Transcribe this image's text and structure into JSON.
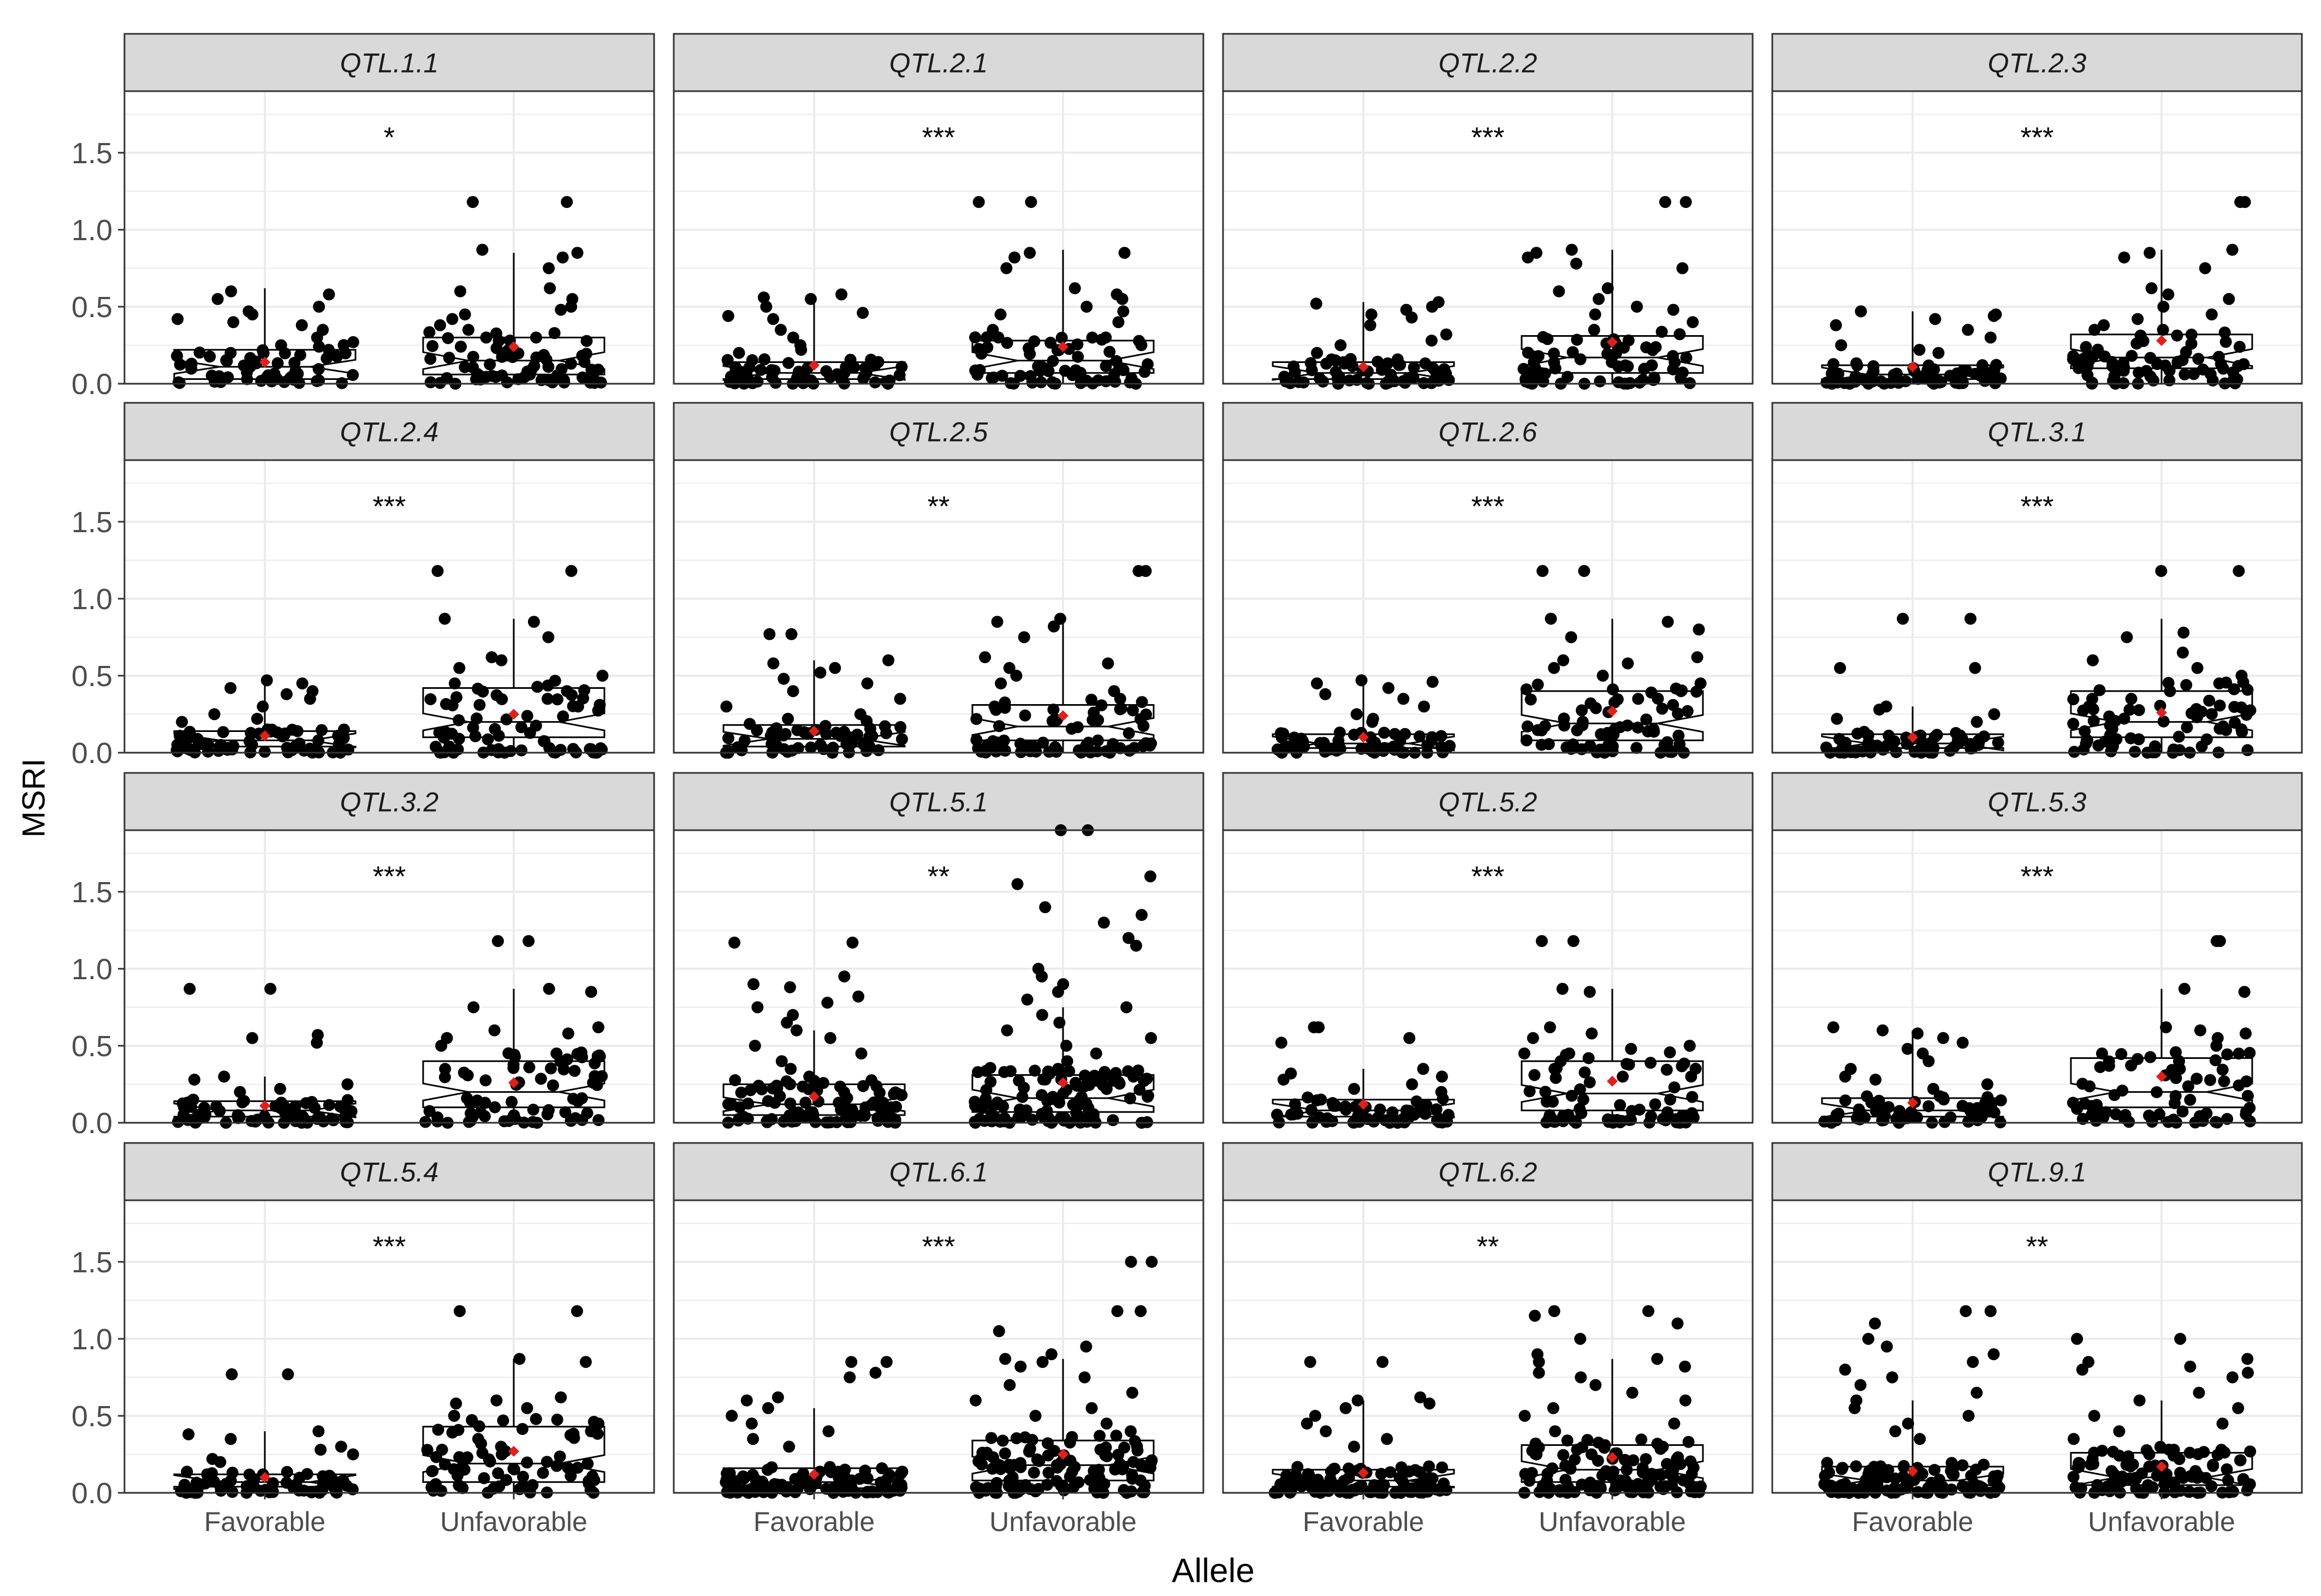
{
  "figure": {
    "ylabel": "MSRI",
    "xlabel": "Allele"
  },
  "chart_data": {
    "type": "box",
    "facet_layout": "4x4 grid, shared axes",
    "grid": true,
    "categories": [
      "Favorable",
      "Unfavorable"
    ],
    "ylim": [
      0,
      1.9
    ],
    "yticks": [
      "0.0",
      "0.5",
      "1.0",
      "1.5"
    ],
    "colors": {
      "points": "#000000",
      "mean_marker": "#e0201b",
      "strip": "#d9d9d9",
      "grid": "#ebebeb"
    },
    "panels": [
      {
        "title": "QTL.1.1",
        "significance": "*",
        "boxes": [
          {
            "group": "Favorable",
            "q1": 0.03,
            "median": 0.11,
            "q3": 0.22,
            "mean": 0.14,
            "whisker_high": 0.62,
            "n_points": 70,
            "points": [
              0.6,
              0.58,
              0.55,
              0.5,
              0.47,
              0.45,
              0.42,
              0.4,
              0.38,
              0.35,
              0.3,
              0.27,
              0.25,
              0.22,
              0.2,
              0.18
            ]
          },
          {
            "group": "Unfavorable",
            "q1": 0.06,
            "median": 0.15,
            "q3": 0.3,
            "mean": 0.24,
            "whisker_high": 0.85,
            "n_points": 80,
            "points": [
              1.18,
              1.18,
              0.87,
              0.85,
              0.82,
              0.75,
              0.62,
              0.6,
              0.55,
              0.5,
              0.48,
              0.45,
              0.42,
              0.38,
              0.35,
              0.3,
              0.28
            ]
          }
        ]
      },
      {
        "title": "QTL.2.1",
        "significance": "***",
        "boxes": [
          {
            "group": "Favorable",
            "q1": 0.03,
            "median": 0.07,
            "q3": 0.14,
            "mean": 0.12,
            "whisker_high": 0.57,
            "n_points": 70,
            "points": [
              0.58,
              0.56,
              0.55,
              0.5,
              0.46,
              0.44,
              0.42,
              0.35,
              0.3,
              0.25,
              0.22,
              0.2
            ]
          },
          {
            "group": "Unfavorable",
            "q1": 0.07,
            "median": 0.15,
            "q3": 0.28,
            "mean": 0.24,
            "whisker_high": 0.87,
            "n_points": 80,
            "points": [
              1.18,
              1.18,
              0.85,
              0.85,
              0.82,
              0.75,
              0.62,
              0.58,
              0.55,
              0.5,
              0.47,
              0.45,
              0.4,
              0.35,
              0.3
            ]
          }
        ]
      },
      {
        "title": "QTL.2.2",
        "significance": "***",
        "boxes": [
          {
            "group": "Favorable",
            "q1": 0.03,
            "median": 0.07,
            "q3": 0.14,
            "mean": 0.11,
            "whisker_high": 0.53,
            "n_points": 70,
            "points": [
              0.53,
              0.52,
              0.5,
              0.48,
              0.45,
              0.43,
              0.38,
              0.32,
              0.28,
              0.25,
              0.2
            ]
          },
          {
            "group": "Unfavorable",
            "q1": 0.07,
            "median": 0.17,
            "q3": 0.31,
            "mean": 0.27,
            "whisker_high": 0.87,
            "n_points": 80,
            "points": [
              1.18,
              1.18,
              0.87,
              0.85,
              0.82,
              0.78,
              0.75,
              0.62,
              0.6,
              0.55,
              0.5,
              0.48,
              0.45,
              0.4,
              0.35
            ]
          }
        ]
      },
      {
        "title": "QTL.2.3",
        "significance": "***",
        "boxes": [
          {
            "group": "Favorable",
            "q1": 0.03,
            "median": 0.06,
            "q3": 0.12,
            "mean": 0.11,
            "whisker_high": 0.47,
            "n_points": 70,
            "points": [
              0.47,
              0.45,
              0.44,
              0.42,
              0.38,
              0.35,
              0.3,
              0.25,
              0.22,
              0.2
            ]
          },
          {
            "group": "Unfavorable",
            "q1": 0.1,
            "median": 0.17,
            "q3": 0.32,
            "mean": 0.28,
            "whisker_high": 0.87,
            "n_points": 80,
            "points": [
              1.18,
              1.18,
              0.87,
              0.85,
              0.82,
              0.75,
              0.62,
              0.58,
              0.55,
              0.5,
              0.45,
              0.42,
              0.38,
              0.35
            ]
          }
        ]
      },
      {
        "title": "QTL.2.4",
        "significance": "***",
        "boxes": [
          {
            "group": "Favorable",
            "q1": 0.04,
            "median": 0.08,
            "q3": 0.14,
            "mean": 0.11,
            "whisker_high": 0.47,
            "n_points": 70,
            "points": [
              0.47,
              0.45,
              0.42,
              0.4,
              0.38,
              0.35,
              0.3,
              0.25,
              0.22,
              0.2
            ]
          },
          {
            "group": "Unfavorable",
            "q1": 0.1,
            "median": 0.2,
            "q3": 0.42,
            "mean": 0.25,
            "whisker_high": 0.87,
            "n_points": 80,
            "points": [
              1.18,
              1.18,
              0.87,
              0.85,
              0.75,
              0.62,
              0.6,
              0.55,
              0.5,
              0.45,
              0.4,
              0.35,
              0.3
            ]
          }
        ]
      },
      {
        "title": "QTL.2.5",
        "significance": "**",
        "boxes": [
          {
            "group": "Favorable",
            "q1": 0.04,
            "median": 0.09,
            "q3": 0.18,
            "mean": 0.14,
            "whisker_high": 0.6,
            "n_points": 70,
            "points": [
              0.77,
              0.77,
              0.6,
              0.58,
              0.55,
              0.52,
              0.48,
              0.45,
              0.4,
              0.35,
              0.3,
              0.25,
              0.22
            ]
          },
          {
            "group": "Unfavorable",
            "q1": 0.08,
            "median": 0.17,
            "q3": 0.31,
            "mean": 0.24,
            "whisker_high": 0.87,
            "n_points": 80,
            "points": [
              1.18,
              1.18,
              0.87,
              0.85,
              0.82,
              0.75,
              0.62,
              0.58,
              0.55,
              0.5,
              0.45,
              0.4,
              0.35,
              0.3
            ]
          }
        ]
      },
      {
        "title": "QTL.2.6",
        "significance": "***",
        "boxes": [
          {
            "group": "Favorable",
            "q1": 0.03,
            "median": 0.06,
            "q3": 0.12,
            "mean": 0.1,
            "whisker_high": 0.46,
            "n_points": 70,
            "points": [
              0.47,
              0.46,
              0.45,
              0.42,
              0.38,
              0.35,
              0.3,
              0.25,
              0.22,
              0.2
            ]
          },
          {
            "group": "Unfavorable",
            "q1": 0.08,
            "median": 0.19,
            "q3": 0.4,
            "mean": 0.27,
            "whisker_high": 0.87,
            "n_points": 80,
            "points": [
              1.18,
              1.18,
              0.87,
              0.85,
              0.8,
              0.75,
              0.62,
              0.6,
              0.58,
              0.55,
              0.5,
              0.45,
              0.4,
              0.35
            ]
          }
        ]
      },
      {
        "title": "QTL.3.1",
        "significance": "***",
        "boxes": [
          {
            "group": "Favorable",
            "q1": 0.03,
            "median": 0.06,
            "q3": 0.12,
            "mean": 0.1,
            "whisker_high": 0.3,
            "n_points": 70,
            "points": [
              0.87,
              0.87,
              0.55,
              0.55,
              0.3,
              0.28,
              0.25,
              0.22,
              0.2
            ]
          },
          {
            "group": "Unfavorable",
            "q1": 0.1,
            "median": 0.2,
            "q3": 0.4,
            "mean": 0.26,
            "whisker_high": 0.87,
            "n_points": 80,
            "points": [
              1.18,
              1.18,
              0.78,
              0.75,
              0.65,
              0.6,
              0.55,
              0.5,
              0.45,
              0.4,
              0.35,
              0.3
            ]
          }
        ]
      },
      {
        "title": "QTL.3.2",
        "significance": "***",
        "boxes": [
          {
            "group": "Favorable",
            "q1": 0.04,
            "median": 0.08,
            "q3": 0.14,
            "mean": 0.11,
            "whisker_high": 0.3,
            "n_points": 70,
            "points": [
              0.87,
              0.87,
              0.57,
              0.55,
              0.52,
              0.3,
              0.28,
              0.25,
              0.22,
              0.2
            ]
          },
          {
            "group": "Unfavorable",
            "q1": 0.1,
            "median": 0.2,
            "q3": 0.4,
            "mean": 0.26,
            "whisker_high": 0.87,
            "n_points": 80,
            "points": [
              1.18,
              1.18,
              0.87,
              0.85,
              0.75,
              0.62,
              0.6,
              0.58,
              0.55,
              0.5,
              0.45,
              0.4,
              0.35
            ]
          }
        ]
      },
      {
        "title": "QTL.5.1",
        "significance": "**",
        "boxes": [
          {
            "group": "Favorable",
            "q1": 0.05,
            "median": 0.12,
            "q3": 0.25,
            "mean": 0.17,
            "whisker_high": 0.6,
            "n_points": 110,
            "points": [
              1.17,
              1.17,
              0.95,
              0.9,
              0.88,
              0.82,
              0.78,
              0.75,
              0.7,
              0.65,
              0.6,
              0.55,
              0.5,
              0.45,
              0.4,
              0.35,
              0.3
            ]
          },
          {
            "group": "Unfavorable",
            "q1": 0.07,
            "median": 0.16,
            "q3": 0.31,
            "mean": 0.26,
            "whisker_high": 0.75,
            "n_points": 130,
            "points": [
              1.9,
              1.9,
              1.6,
              1.55,
              1.4,
              1.35,
              1.3,
              1.2,
              1.15,
              1.0,
              0.95,
              0.9,
              0.85,
              0.8,
              0.75,
              0.7,
              0.65,
              0.6,
              0.55,
              0.5,
              0.45,
              0.4
            ]
          }
        ]
      },
      {
        "title": "QTL.5.2",
        "significance": "***",
        "boxes": [
          {
            "group": "Favorable",
            "q1": 0.04,
            "median": 0.08,
            "q3": 0.15,
            "mean": 0.12,
            "whisker_high": 0.35,
            "n_points": 70,
            "points": [
              0.62,
              0.62,
              0.55,
              0.52,
              0.35,
              0.32,
              0.3,
              0.28,
              0.25,
              0.22,
              0.2
            ]
          },
          {
            "group": "Unfavorable",
            "q1": 0.08,
            "median": 0.19,
            "q3": 0.4,
            "mean": 0.27,
            "whisker_high": 0.87,
            "n_points": 80,
            "points": [
              1.18,
              1.18,
              0.87,
              0.85,
              0.62,
              0.58,
              0.55,
              0.5,
              0.48,
              0.45,
              0.4,
              0.35
            ]
          }
        ]
      },
      {
        "title": "QTL.5.3",
        "significance": "***",
        "boxes": [
          {
            "group": "Favorable",
            "q1": 0.04,
            "median": 0.08,
            "q3": 0.16,
            "mean": 0.13,
            "whisker_high": 0.6,
            "n_points": 70,
            "points": [
              0.62,
              0.6,
              0.58,
              0.55,
              0.52,
              0.48,
              0.45,
              0.4,
              0.35,
              0.3,
              0.28,
              0.25,
              0.22
            ]
          },
          {
            "group": "Unfavorable",
            "q1": 0.1,
            "median": 0.2,
            "q3": 0.42,
            "mean": 0.3,
            "whisker_high": 0.87,
            "n_points": 80,
            "points": [
              1.18,
              1.18,
              0.87,
              0.85,
              0.62,
              0.6,
              0.58,
              0.55,
              0.5,
              0.45,
              0.4,
              0.35
            ]
          }
        ]
      },
      {
        "title": "QTL.5.4",
        "significance": "***",
        "boxes": [
          {
            "group": "Favorable",
            "q1": 0.04,
            "median": 0.07,
            "q3": 0.12,
            "mean": 0.1,
            "whisker_high": 0.4,
            "n_points": 70,
            "points": [
              0.77,
              0.77,
              0.4,
              0.38,
              0.35,
              0.3,
              0.28,
              0.25,
              0.22,
              0.2
            ]
          },
          {
            "group": "Unfavorable",
            "q1": 0.07,
            "median": 0.19,
            "q3": 0.43,
            "mean": 0.27,
            "whisker_high": 0.87,
            "n_points": 80,
            "points": [
              1.18,
              1.18,
              0.87,
              0.85,
              0.62,
              0.6,
              0.58,
              0.55,
              0.5,
              0.45,
              0.4,
              0.35
            ]
          }
        ]
      },
      {
        "title": "QTL.6.1",
        "significance": "***",
        "boxes": [
          {
            "group": "Favorable",
            "q1": 0.03,
            "median": 0.07,
            "q3": 0.16,
            "mean": 0.12,
            "whisker_high": 0.55,
            "n_points": 110,
            "points": [
              0.85,
              0.85,
              0.78,
              0.75,
              0.62,
              0.6,
              0.55,
              0.5,
              0.45,
              0.4,
              0.35,
              0.3
            ]
          },
          {
            "group": "Unfavorable",
            "q1": 0.08,
            "median": 0.18,
            "q3": 0.34,
            "mean": 0.25,
            "whisker_high": 0.87,
            "n_points": 130,
            "points": [
              1.5,
              1.5,
              1.18,
              1.18,
              1.05,
              0.95,
              0.9,
              0.87,
              0.85,
              0.82,
              0.75,
              0.7,
              0.65,
              0.6,
              0.55,
              0.5,
              0.45,
              0.4
            ]
          }
        ]
      },
      {
        "title": "QTL.6.2",
        "significance": "**",
        "boxes": [
          {
            "group": "Favorable",
            "q1": 0.04,
            "median": 0.08,
            "q3": 0.15,
            "mean": 0.13,
            "whisker_high": 0.6,
            "n_points": 110,
            "points": [
              0.85,
              0.85,
              0.62,
              0.6,
              0.58,
              0.55,
              0.5,
              0.45,
              0.4,
              0.35,
              0.3
            ]
          },
          {
            "group": "Unfavorable",
            "q1": 0.07,
            "median": 0.15,
            "q3": 0.31,
            "mean": 0.23,
            "whisker_high": 0.87,
            "n_points": 130,
            "points": [
              1.18,
              1.18,
              1.15,
              1.1,
              1.0,
              0.9,
              0.87,
              0.85,
              0.82,
              0.78,
              0.75,
              0.7,
              0.65,
              0.6,
              0.55,
              0.5,
              0.45,
              0.4
            ]
          }
        ]
      },
      {
        "title": "QTL.9.1",
        "significance": "**",
        "boxes": [
          {
            "group": "Favorable",
            "q1": 0.03,
            "median": 0.08,
            "q3": 0.17,
            "mean": 0.14,
            "whisker_high": 0.6,
            "n_points": 110,
            "points": [
              1.18,
              1.18,
              1.1,
              1.0,
              0.95,
              0.9,
              0.85,
              0.8,
              0.75,
              0.7,
              0.65,
              0.6,
              0.55,
              0.5,
              0.45,
              0.4,
              0.35
            ]
          },
          {
            "group": "Unfavorable",
            "q1": 0.05,
            "median": 0.1,
            "q3": 0.26,
            "mean": 0.17,
            "whisker_high": 0.6,
            "n_points": 110,
            "points": [
              1.0,
              1.0,
              0.87,
              0.85,
              0.82,
              0.8,
              0.78,
              0.75,
              0.65,
              0.6,
              0.55,
              0.5,
              0.45,
              0.4,
              0.35
            ]
          }
        ]
      }
    ]
  }
}
